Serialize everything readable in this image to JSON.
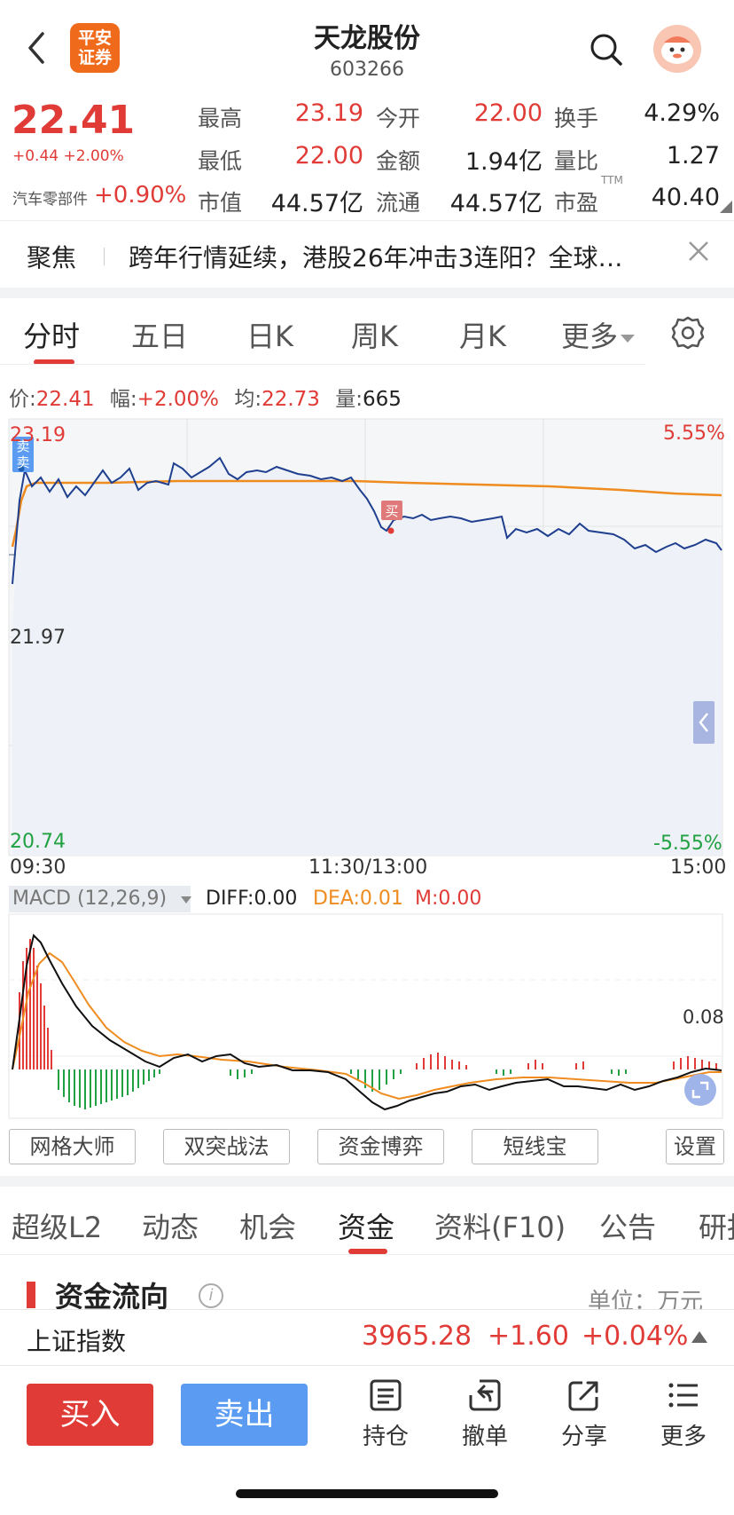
{
  "header": {
    "title": "天龙股份",
    "code": "603266",
    "logo_line1": "平安",
    "logo_line2": "证券"
  },
  "quote": {
    "price": "22.41",
    "change": "+0.44  +2.00%",
    "sector_name": "汽车零部件",
    "sector_change": "+0.90%",
    "rows": [
      [
        {
          "label": "最高",
          "value": "23.19"
        },
        {
          "label": "今开",
          "value": "22.00"
        },
        {
          "label": "换手",
          "value": "4.29%"
        }
      ],
      [
        {
          "label": "最低",
          "value": "22.00"
        },
        {
          "label": "金额",
          "value": "1.94亿"
        },
        {
          "label": "量比",
          "value": "1.27"
        }
      ],
      [
        {
          "label": "市值",
          "value": "44.57亿"
        },
        {
          "label": "流通",
          "value": "44.57亿"
        },
        {
          "label": "市盈",
          "value": "40.40"
        }
      ]
    ],
    "ttm": "TTM"
  },
  "focus": {
    "label": "聚焦",
    "text": "跨年行情延续，港股26年冲击3连阳？全球…"
  },
  "chart_tabs": [
    "分时",
    "五日",
    "日K",
    "周K",
    "月K",
    "更多"
  ],
  "info_line": {
    "price_label": "价:",
    "price": "22.41",
    "amp_label": "幅:",
    "amp": "+2.00%",
    "avg_label": "均:",
    "avg": "22.73",
    "vol_label": "量:",
    "vol": "665"
  },
  "intraday": {
    "y_high": "23.19",
    "y_mid": "21.97",
    "y_low": "20.74",
    "pct_high": "5.55%",
    "pct_low": "-5.55%",
    "t_start": "09:30",
    "t_mid": "11:30/13:00",
    "t_end": "15:00",
    "sell_marker": "卖",
    "buy_marker": "买"
  },
  "macd": {
    "selector": "MACD (12,26,9)",
    "diff": "DIFF:0.00",
    "dea": "DEA:0.01",
    "m": "M:0.00",
    "scale": "0.08"
  },
  "tools": [
    "网格大师",
    "双突战法",
    "资金博弈",
    "短线宝",
    "设置"
  ],
  "content_tabs": [
    "超级L2",
    "动态",
    "机会",
    "资金",
    "资料(F10)",
    "公告",
    "研报"
  ],
  "fund_flow": {
    "title": "资金流向",
    "unit": "单位：万元"
  },
  "index_bar": {
    "name": "上证指数",
    "value": "3965.28",
    "change": "+1.60",
    "pct": "+0.04%"
  },
  "bottom": {
    "buy": "买入",
    "sell": "卖出",
    "actions": [
      {
        "label": "持仓",
        "icon": "holdings-icon"
      },
      {
        "label": "撤单",
        "icon": "cancel-order-icon"
      },
      {
        "label": "分享",
        "icon": "share-icon"
      },
      {
        "label": "更多",
        "icon": "menu-icon"
      }
    ]
  },
  "colors": {
    "up": "#e03b36",
    "down": "#22a142",
    "avg_line": "#ef8c20",
    "price_line": "#1f3f8f",
    "sell_btn": "#5b9cf2"
  }
}
